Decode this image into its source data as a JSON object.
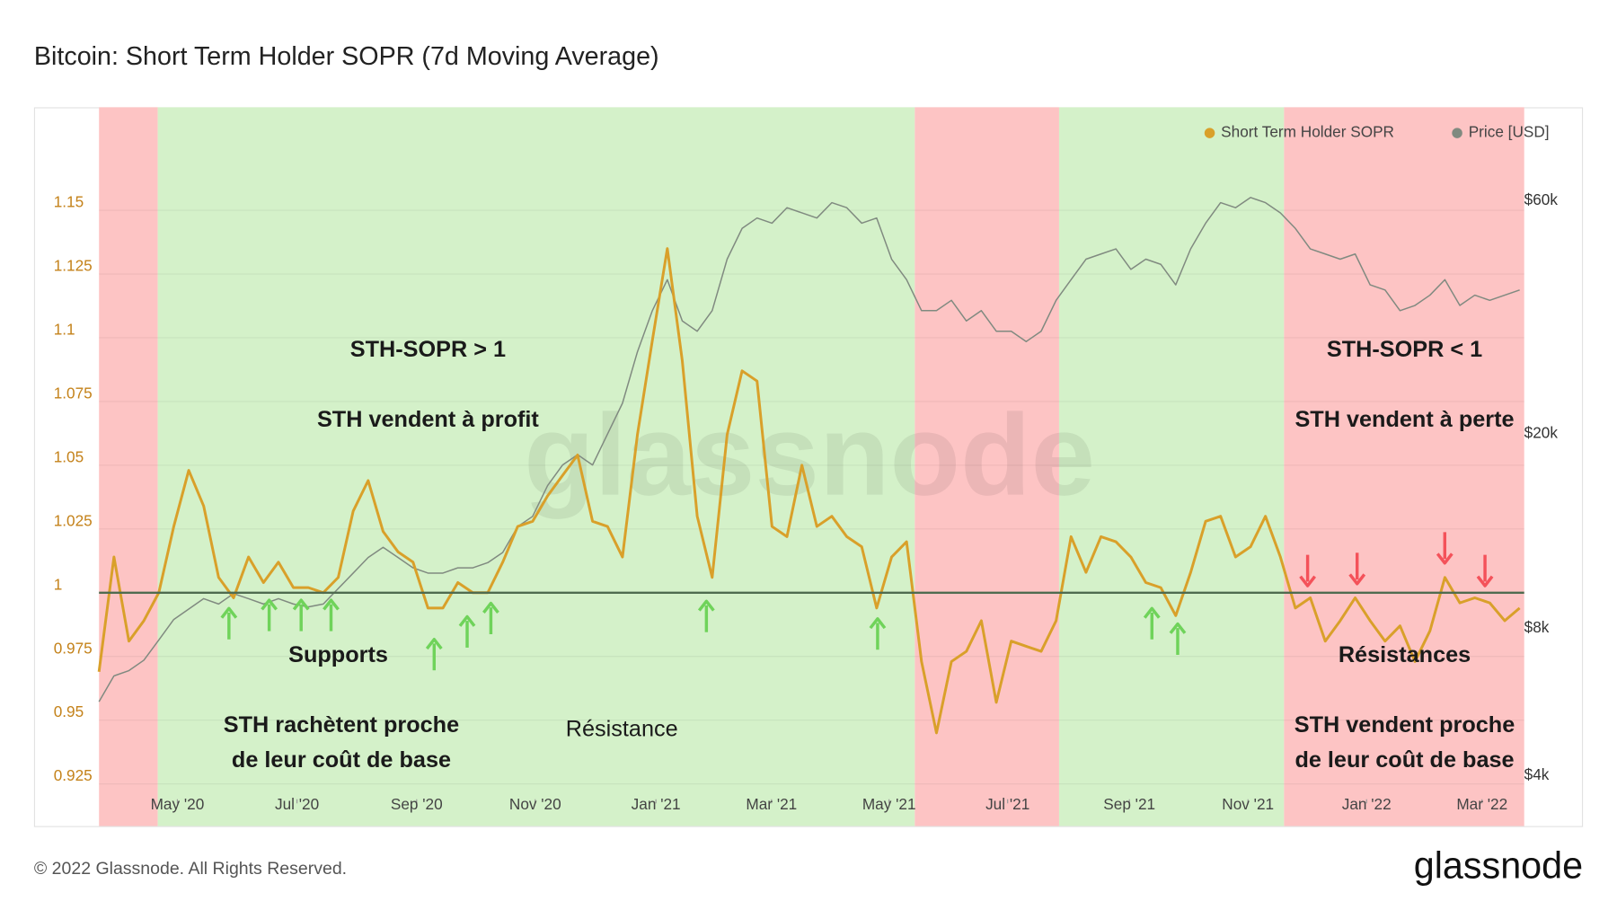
{
  "chart_data": {
    "type": "line",
    "title": "Bitcoin: Short Term Holder SOPR (7d Moving Average)",
    "xlim": [
      0,
      95.3
    ],
    "xticks": [
      {
        "value": 5.24,
        "label": "May '20"
      },
      {
        "value": 13.24,
        "label": "Jul '20"
      },
      {
        "value": 21.24,
        "label": "Sep '20"
      },
      {
        "value": 29.17,
        "label": "Nov '20"
      },
      {
        "value": 37.24,
        "label": "Jan '21"
      },
      {
        "value": 44.97,
        "label": "Mar '21"
      },
      {
        "value": 52.83,
        "label": "May '21"
      },
      {
        "value": 60.76,
        "label": "Jul '21"
      },
      {
        "value": 68.9,
        "label": "Sep '21"
      },
      {
        "value": 76.83,
        "label": "Nov '21"
      },
      {
        "value": 84.76,
        "label": "Jan '22"
      },
      {
        "value": 92.48,
        "label": "Mar '22"
      }
    ],
    "ylim": [
      0.919,
      1.19
    ],
    "yticks": [
      0.925,
      0.95,
      0.975,
      1,
      1.025,
      1.05,
      1.075,
      1.1,
      1.125,
      1.15
    ],
    "y2lim": [
      3580,
      92800
    ],
    "y2log": true,
    "y2ticks": [
      {
        "value": 4000,
        "label": "$4k"
      },
      {
        "value": 8000,
        "label": "$8k"
      },
      {
        "value": 20000,
        "label": "$20k"
      },
      {
        "value": 60000,
        "label": "$60k"
      }
    ],
    "grid": true,
    "legend": "top-right",
    "reference_line": 1,
    "bands": [
      {
        "from": 0,
        "to": 3.93,
        "color": "#fdc4c4"
      },
      {
        "from": 3.93,
        "to": 54.55,
        "color": "#d4f1c9"
      },
      {
        "from": 54.55,
        "to": 64.2,
        "color": "#fdc4c4"
      },
      {
        "from": 64.2,
        "to": 79.24,
        "color": "#d4f1c9"
      },
      {
        "from": 79.24,
        "to": 95.3,
        "color": "#fdc4c4"
      }
    ],
    "series": [
      {
        "name": "Short Term Holder SOPR",
        "color": "#d9a02a",
        "values": [
          0.969,
          1.014,
          0.981,
          0.989,
          1.0,
          1.026,
          1.048,
          1.034,
          1.006,
          0.998,
          1.014,
          1.004,
          1.012,
          1.002,
          1.002,
          1.0,
          1.006,
          1.032,
          1.044,
          1.024,
          1.016,
          1.012,
          0.994,
          0.994,
          1.004,
          1.0,
          1.0,
          1.012,
          1.026,
          1.028,
          1.038,
          1.046,
          1.054,
          1.028,
          1.026,
          1.014,
          1.062,
          1.099,
          1.135,
          1.091,
          1.03,
          1.006,
          1.062,
          1.087,
          1.083,
          1.026,
          1.022,
          1.05,
          1.026,
          1.03,
          1.022,
          1.018,
          0.994,
          1.014,
          1.02,
          0.973,
          0.945,
          0.973,
          0.977,
          0.989,
          0.957,
          0.981,
          0.979,
          0.977,
          0.989,
          1.022,
          1.008,
          1.022,
          1.02,
          1.014,
          1.004,
          1.002,
          0.991,
          1.008,
          1.028,
          1.03,
          1.014,
          1.018,
          1.03,
          1.014,
          0.994,
          0.998,
          0.981,
          0.989,
          0.998,
          0.989,
          0.981,
          0.987,
          0.973,
          0.985,
          1.006,
          0.996,
          0.998,
          0.996,
          0.989,
          0.994
        ]
      },
      {
        "name": "Price [USD]",
        "color": "#808a80",
        "axis": "y2",
        "values": [
          5670,
          6400,
          6560,
          6890,
          7580,
          8350,
          8770,
          9210,
          8980,
          9430,
          9210,
          8980,
          9210,
          8980,
          8860,
          8980,
          9660,
          10390,
          11180,
          11730,
          11180,
          10650,
          10390,
          10390,
          10650,
          10650,
          10910,
          11450,
          12930,
          13570,
          15690,
          17290,
          18150,
          17290,
          20000,
          23130,
          29460,
          35770,
          41380,
          34080,
          32460,
          35770,
          45590,
          52700,
          55350,
          54020,
          58100,
          56700,
          55350,
          59500,
          58100,
          54020,
          55350,
          45590,
          41380,
          35770,
          35770,
          37550,
          34080,
          35770,
          32460,
          32460,
          30930,
          32460,
          37550,
          41380,
          45590,
          46700,
          47850,
          43440,
          45590,
          44500,
          40390,
          47850,
          54020,
          59500,
          58100,
          60950,
          59500,
          56700,
          52700,
          47850,
          46700,
          45590,
          46700,
          40390,
          39420,
          35770,
          36660,
          38480,
          41380,
          36660,
          38480,
          37550,
          38480,
          39420
        ]
      }
    ],
    "annotations": [
      "STH-SOPR > 1",
      "STH vendent à profit",
      "Supports",
      "STH rachètent proche",
      "de leur coût de base",
      "Résistance",
      "STH-SOPR < 1",
      "STH vendent à perte",
      "Résistances",
      "STH vendent proche",
      "de leur coût de base"
    ],
    "watermark": "glassnode",
    "copyright": "© 2022 Glassnode. All Rights Reserved.",
    "logo": "glassnode"
  }
}
